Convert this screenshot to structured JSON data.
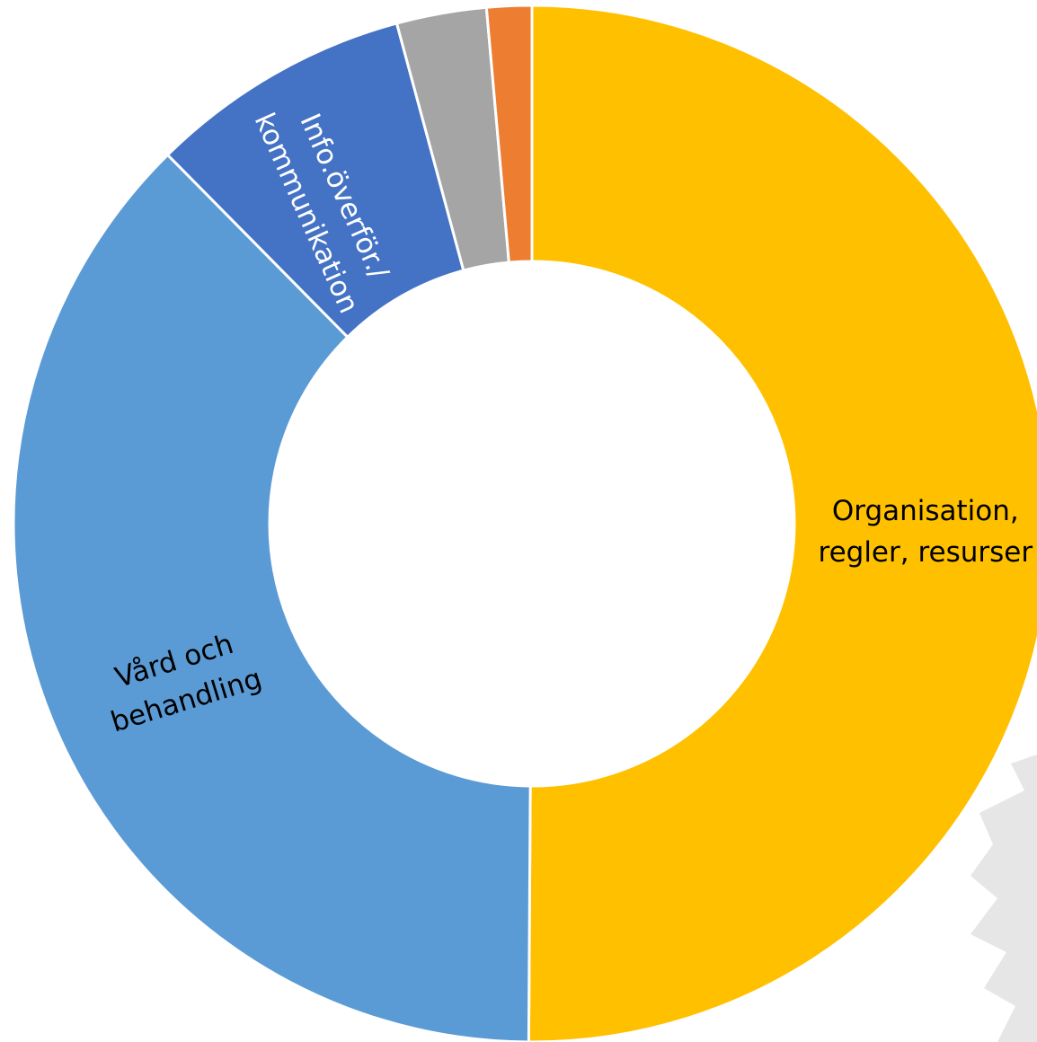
{
  "chart_data": {
    "type": "donut",
    "categories": [
      "Organisation,\nregler, resurser",
      "Vård och\nbehandling",
      "Info.överför./\nkommunikation",
      null,
      null
    ],
    "values": [
      50.1,
      37.5,
      8.2,
      2.8,
      1.4
    ],
    "colors": [
      "#FFC000",
      "#5B9BD5",
      "#4472C4",
      "#A5A5A5",
      "#ED7D31"
    ],
    "label_colors": [
      "#000000",
      "#000000",
      "#ffffff",
      null,
      null
    ]
  }
}
